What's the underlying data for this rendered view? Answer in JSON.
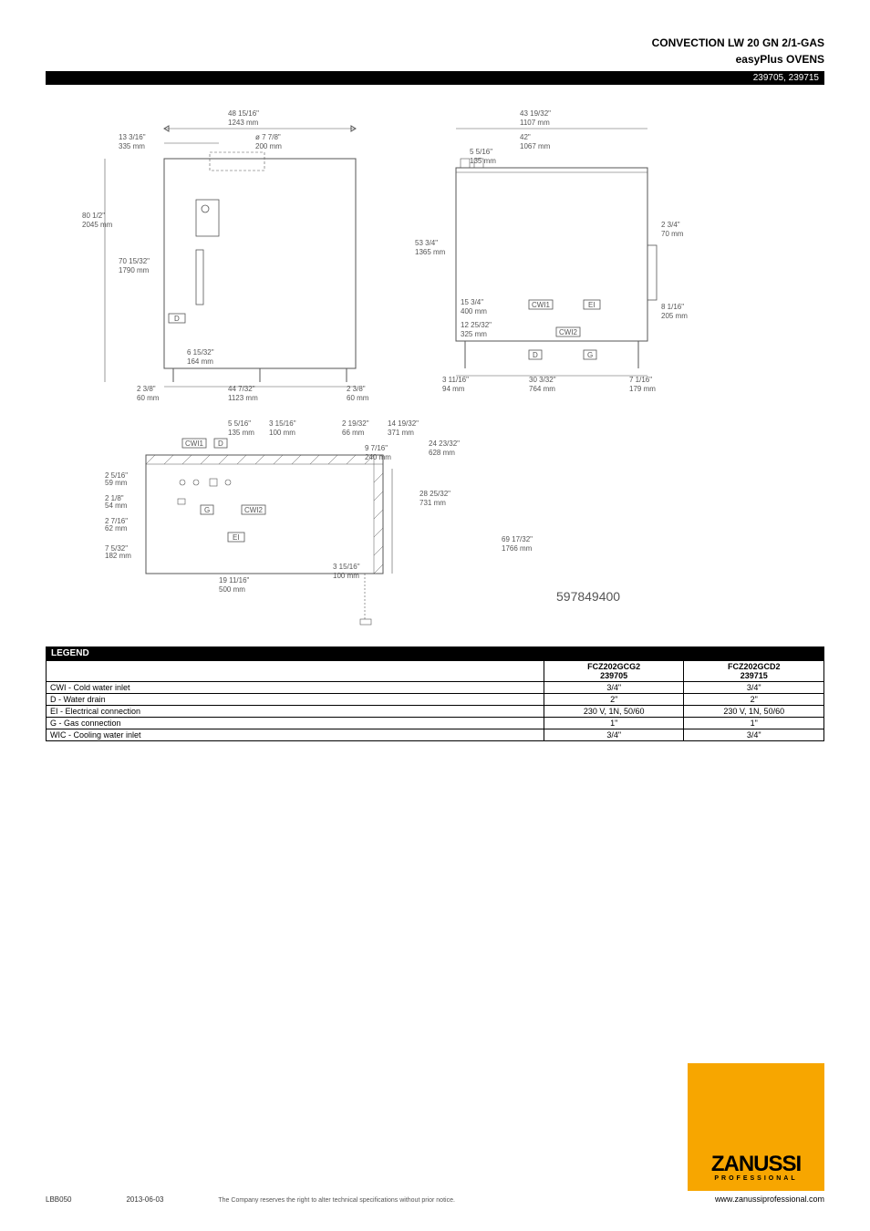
{
  "header": {
    "title_line1": "CONVECTION LW 20 GN 2/1-GAS",
    "title_line2": "easyPlus OVENS"
  },
  "model_bar": "239705, 239715",
  "drawing": {
    "front": {
      "dims": {
        "total_width": {
          "frac": "48 15/16\"",
          "mm": "1243 mm"
        },
        "dia": {
          "frac": "ø 7 7/8\"",
          "mm": "200 mm"
        },
        "left_offset": {
          "frac": "13 3/16\"",
          "mm": "335 mm"
        },
        "total_height": {
          "frac": "80 1/2\"",
          "mm": "2045 mm"
        },
        "upper_height": {
          "frac": "70 15/32\"",
          "mm": "1790 mm"
        },
        "lower_gap": {
          "frac": "6 15/32\"",
          "mm": "164 mm"
        },
        "base_width": {
          "frac": "44 7/32\"",
          "mm": "1123 mm"
        },
        "left_foot": {
          "frac": "2 3/8\"",
          "mm": "60 mm"
        },
        "right_foot": {
          "frac": "2 3/8\"",
          "mm": "60 mm"
        }
      },
      "tags": [
        "D"
      ]
    },
    "side": {
      "dims": {
        "total_width": {
          "frac": "43 19/32\"",
          "mm": "1107 mm"
        },
        "inner_width": {
          "frac": "42\"",
          "mm": "1067 mm"
        },
        "top_offset": {
          "frac": "5 5/16\"",
          "mm": "135 mm"
        },
        "body_height": {
          "frac": "53 3/4\"",
          "mm": "1365 mm"
        },
        "handle_offset": {
          "frac": "2 3/4\"",
          "mm": "70 mm"
        },
        "lower1": {
          "frac": "15 3/4\"",
          "mm": "400 mm"
        },
        "lower2": {
          "frac": "12 25/32\"",
          "mm": "325 mm"
        },
        "handle_h": {
          "frac": "8 1/16\"",
          "mm": "205 mm"
        },
        "left_foot": {
          "frac": "3 11/16\"",
          "mm": "94 mm"
        },
        "mid": {
          "frac": "30 3/32\"",
          "mm": "764 mm"
        },
        "right_foot": {
          "frac": "7 1/16\"",
          "mm": "179 mm"
        }
      },
      "tags": [
        "CWI1",
        "EI",
        "CWI2",
        "D",
        "G"
      ]
    },
    "top": {
      "dims": {
        "d1": {
          "frac": "5 5/16\"",
          "mm": "135 mm"
        },
        "d2": {
          "frac": "3 15/16\"",
          "mm": "100 mm"
        },
        "d3": {
          "frac": "2 19/32\"",
          "mm": "66 mm"
        },
        "d4": {
          "frac": "14 19/32\"",
          "mm": "371 mm"
        },
        "d5": {
          "frac": "9 7/16\"",
          "mm": "240 mm"
        },
        "d6": {
          "frac": "24 23/32\"",
          "mm": "628 mm"
        },
        "d7": {
          "frac": "28 25/32\"",
          "mm": "731 mm"
        },
        "d8": {
          "frac": "69 17/32\"",
          "mm": "1766 mm"
        },
        "h1": {
          "frac": "2 5/16\"",
          "mm": "59 mm"
        },
        "h2": {
          "frac": "2 1/8\"",
          "mm": "54 mm"
        },
        "h3": {
          "frac": "2 7/16\"",
          "mm": "62 mm"
        },
        "h4": {
          "frac": "7 5/32\"",
          "mm": "182 mm"
        },
        "h5": {
          "frac": "19 11/16\"",
          "mm": "500 mm"
        },
        "h6": {
          "frac": "3 15/16\"",
          "mm": "100 mm"
        }
      },
      "tags": [
        "CWI1",
        "D",
        "CWI2",
        "G",
        "EI"
      ]
    },
    "number": "597849400"
  },
  "legend": {
    "title": "LEGEND",
    "columns": [
      {
        "code": "FCZ202GCG2",
        "model": "239705"
      },
      {
        "code": "FCZ202GCD2",
        "model": "239715"
      }
    ],
    "rows": [
      {
        "label": "CWI - Cold water inlet",
        "v1": "3/4\"",
        "v2": "3/4\""
      },
      {
        "label": "D - Water drain",
        "v1": "2\"",
        "v2": "2\""
      },
      {
        "label": "EI - Electrical connection",
        "v1": "230 V, 1N, 50/60",
        "v2": "230 V, 1N, 50/60"
      },
      {
        "label": "G - Gas connection",
        "v1": "1\"",
        "v2": "1\""
      },
      {
        "label": "WIC - Cooling water inlet",
        "v1": "3/4\"",
        "v2": "3/4\""
      }
    ]
  },
  "footer": {
    "doc_code": "LBB050",
    "date": "2013-06-03",
    "note": "The Company reserves the right to alter technical specifications without prior notice.",
    "brand": "ZANUSSI",
    "brand_sub": "PROFESSIONAL",
    "url": "www.zanussiprofessional.com"
  },
  "colors": {
    "bar_bg": "#000000",
    "bar_fg": "#ffffff",
    "line": "#555555",
    "accent": "#f7a600"
  }
}
